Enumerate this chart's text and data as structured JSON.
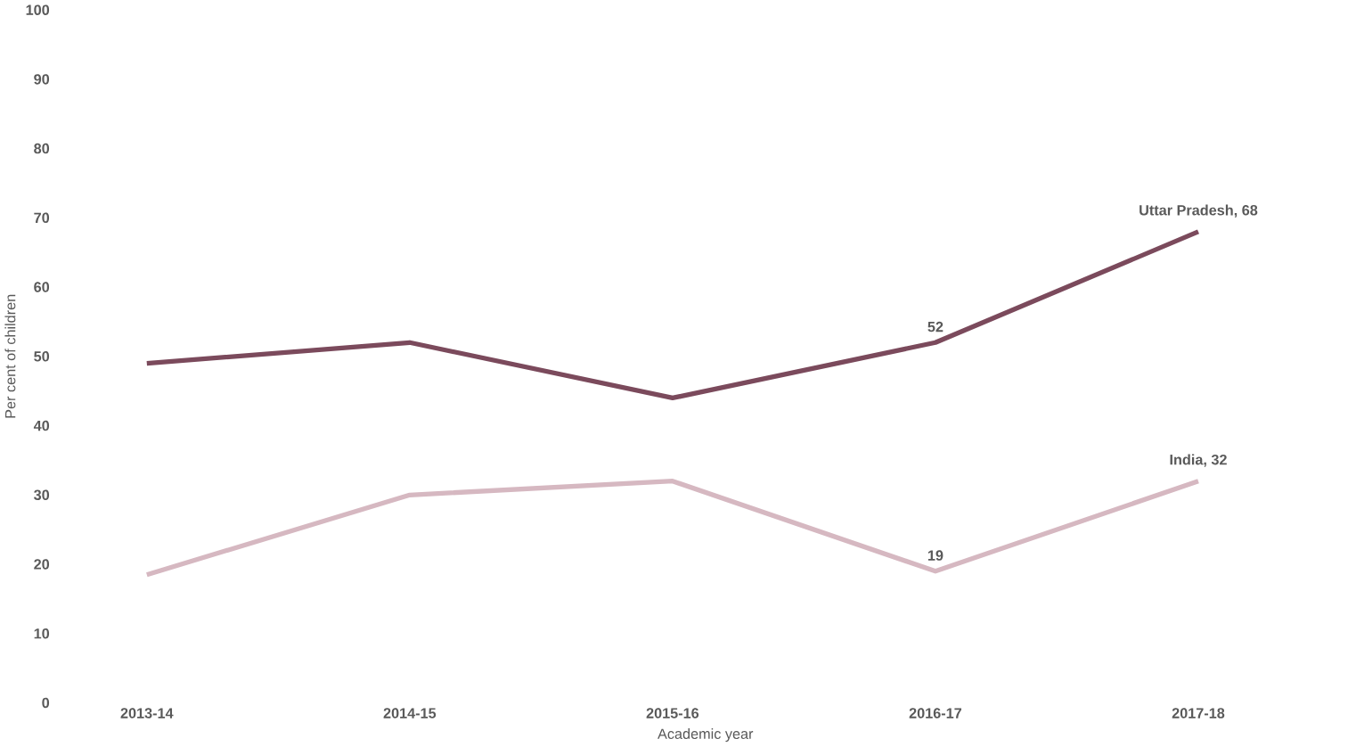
{
  "chart_data": {
    "type": "line",
    "xlabel": "Academic year",
    "ylabel": "Per cent of children",
    "categories": [
      "2013-14",
      "2014-15",
      "2015-16",
      "2016-17",
      "2017-18"
    ],
    "series": [
      {
        "color": "#7b4a5c",
        "values": [
          49,
          52,
          44,
          52,
          68
        ],
        "value_labels": [
          null,
          null,
          null,
          "52",
          null
        ]
      },
      {
        "color": "#d6b8c1",
        "values": [
          18.5,
          30,
          32,
          19,
          32
        ],
        "value_labels": [
          null,
          null,
          null,
          "19",
          null
        ]
      }
    ],
    "annotations": [
      {
        "text": "Uttar Pradesh, 68",
        "x": "2017-18",
        "y": 68
      },
      {
        "text": "India, 32",
        "x": "2017-18",
        "y": 32
      }
    ],
    "ylim": [
      0,
      100
    ],
    "yticks": [
      0,
      10,
      20,
      30,
      40,
      50,
      60,
      70,
      80,
      90,
      100
    ],
    "marker": "none",
    "line_style": "solid"
  }
}
